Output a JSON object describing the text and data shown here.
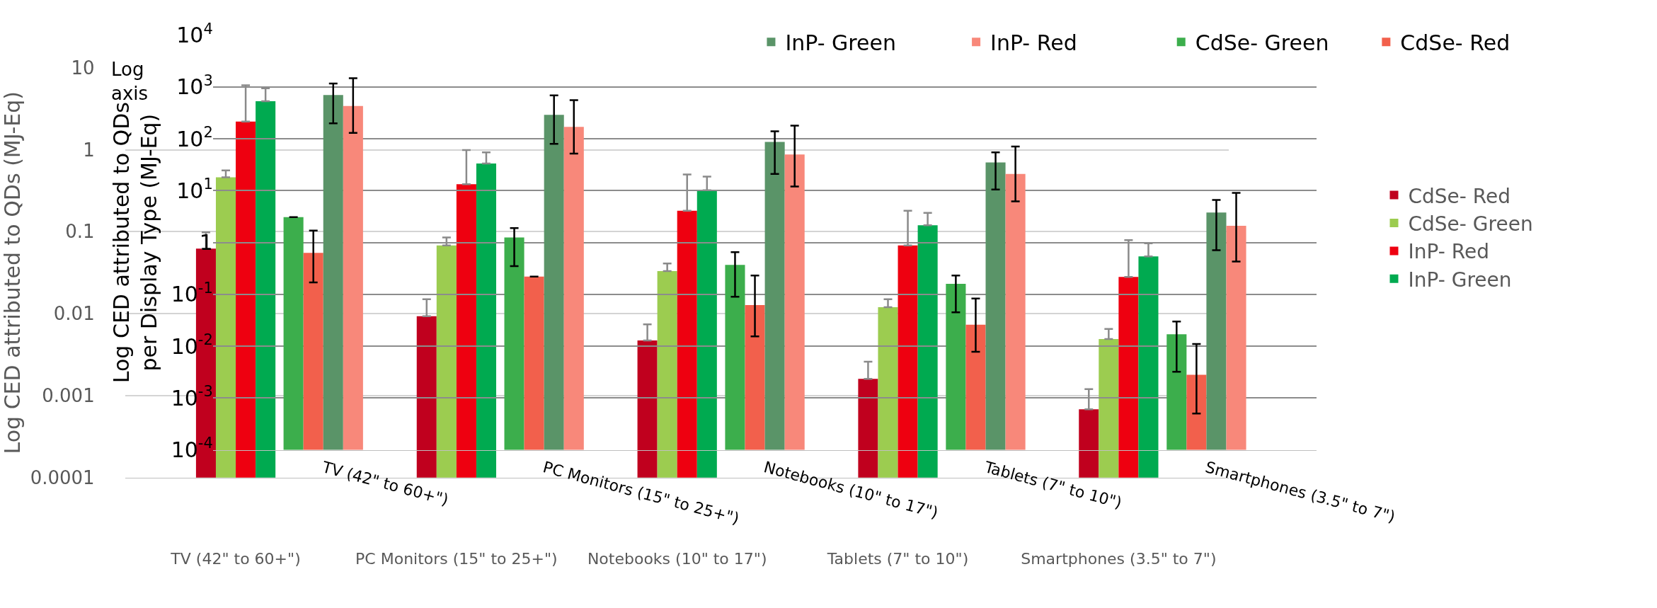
{
  "chart_data": [
    {
      "type": "bar",
      "ylabel": "Log CED attributed to QDs (MJ-Eq)",
      "categories": [
        "TV (42\" to 60+\")",
        "PC Monitors (15\" to 25+\")",
        "Notebooks (10\" to 17\")",
        "Tablets (7\" to 10\")",
        "Smartphones (3.5\" to 7\")"
      ],
      "series": [
        {
          "name": "CdSe- Red",
          "color": "#c0001e",
          "values": [
            0.062,
            0.0093,
            0.0047,
            0.0016,
            0.00068
          ],
          "errors": [
            [
              0.062,
              0.098
            ],
            [
              0.0093,
              0.015
            ],
            [
              0.0047,
              0.0074
            ],
            [
              0.0016,
              0.0026
            ],
            [
              0.00068,
              0.0012
            ]
          ]
        },
        {
          "name": "CdSe- Green",
          "color": "#9ccc50",
          "values": [
            0.46,
            0.068,
            0.033,
            0.012,
            0.0049
          ],
          "errors": [
            [
              0.46,
              0.56
            ],
            [
              0.068,
              0.085
            ],
            [
              0.033,
              0.041
            ],
            [
              0.012,
              0.015
            ],
            [
              0.0049,
              0.0065
            ]
          ]
        },
        {
          "name": "InP- Red",
          "color": "#ee0010",
          "values": [
            2.2,
            0.38,
            0.18,
            0.068,
            0.028
          ],
          "errors": [
            [
              2.2,
              6.1
            ],
            [
              0.38,
              0.99
            ],
            [
              0.18,
              0.5
            ],
            [
              0.068,
              0.18
            ],
            [
              0.028,
              0.079
            ]
          ]
        },
        {
          "name": "InP- Green",
          "color": "#00aa50",
          "values": [
            3.9,
            0.68,
            0.32,
            0.12,
            0.05
          ],
          "errors": [
            [
              3.9,
              5.6
            ],
            [
              0.68,
              0.93
            ],
            [
              0.32,
              0.47
            ],
            [
              0.12,
              0.17
            ],
            [
              0.05,
              0.072
            ]
          ]
        }
      ],
      "log": "y",
      "ylim": [
        0.0001,
        10
      ],
      "yticks": [
        0.0001,
        0.001,
        0.01,
        0.1,
        1,
        10
      ],
      "grid": "y",
      "legend": "right"
    },
    {
      "type": "bar",
      "ylabel": "Log CED attributed to QDs per Display Type (MJ-Eq)",
      "annotations": [
        "Log axis"
      ],
      "categories": [
        "TV (42\" to 60+\")",
        "PC Monitors (15\" to 25+\")",
        "Notebooks (10\" to 17\")",
        "Tablets (7\" to 10\")",
        "Smartphones (3.5\" to 7\")"
      ],
      "series": [
        {
          "name": "CdSe- Green",
          "color": "#3cae4c",
          "values": [
            3.1,
            1.25,
            0.37,
            0.16,
            0.017
          ],
          "errors": [
            null,
            [
              0.35,
              1.9
            ],
            [
              0.09,
              0.65
            ],
            [
              0.045,
              0.23
            ],
            [
              0.0032,
              0.03
            ]
          ]
        },
        {
          "name": "CdSe- Red",
          "color": "#f2604c",
          "values": [
            0.63,
            0.22,
            0.062,
            0.026,
            0.0028
          ],
          "errors": [
            [
              0.17,
              1.7
            ],
            null,
            [
              0.0155,
              0.23
            ],
            [
              0.0078,
              0.083
            ],
            [
              0.0005,
              0.011
            ]
          ]
        },
        {
          "name": "InP- Green",
          "color": "#5a9468",
          "values": [
            700,
            290,
            87,
            35,
            3.8
          ],
          "errors": [
            [
              200,
              1170
            ],
            [
              80,
              690
            ],
            [
              21,
              140
            ],
            [
              10.5,
              55
            ],
            [
              0.71,
              6.6
            ]
          ]
        },
        {
          "name": "InP- Red",
          "color": "#f8887a",
          "values": [
            430,
            170,
            50,
            21,
            2.1
          ],
          "errors": [
            [
              130,
              1480
            ],
            [
              52,
              560
            ],
            [
              12,
              180
            ],
            [
              6.2,
              71
            ],
            [
              0.43,
              9.1
            ]
          ]
        }
      ],
      "log": "y",
      "ylim": [
        0.0001,
        10000
      ],
      "yticks": [
        {
          "value": 0.0001,
          "label": "10$^{-4}$"
        },
        {
          "value": 0.001,
          "label": "10$^{-3}$"
        },
        {
          "value": 0.01,
          "label": "10$^{-2}$"
        },
        {
          "value": 0.1,
          "label": "10$^{-1}$"
        },
        1,
        {
          "value": 10,
          "label": "10$^{1}$"
        },
        {
          "value": 100,
          "label": "10$^{2}$"
        },
        {
          "value": 1000,
          "label": "10$^{3}$"
        },
        {
          "value": 10000,
          "label": "10$^{4}$"
        }
      ],
      "grid": "y",
      "legend": "top right"
    }
  ]
}
